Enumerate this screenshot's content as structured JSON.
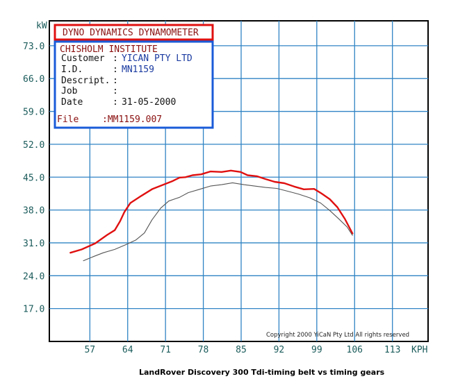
{
  "chart_data": {
    "type": "line",
    "y_unit": "kW",
    "x_unit": "KPH",
    "y_ticks": [
      "73.0",
      "66.0",
      "59.0",
      "52.0",
      "45.0",
      "38.0",
      "31.0",
      "24.0",
      "17.0"
    ],
    "x_ticks": [
      "57",
      "64",
      "71",
      "78",
      "85",
      "92",
      "99",
      "106",
      "113"
    ],
    "xlim": [
      49.5,
      119.6
    ],
    "ylim": [
      10.0,
      78.3
    ],
    "grid": true,
    "header": {
      "title": "DYNO DYNAMICS DYNAMOMETER",
      "institute": "CHISHOLM INSTITUTE",
      "rows": [
        {
          "label": "Customer",
          "sep": ":",
          "value": "YICAN PTY LTD"
        },
        {
          "label": "I.D.",
          "sep": ":",
          "value": "MN1159"
        },
        {
          "label": "Descript.",
          "sep": ":",
          "value": ""
        },
        {
          "label": "Job",
          "sep": ":",
          "value": ""
        },
        {
          "label": "Date",
          "sep": ":",
          "value": "31-05-2000"
        }
      ],
      "file_label": "File",
      "file_value": ":MM1159.007"
    },
    "copyright": "Copyright 2000 YiCaN Pty Ltd All rights reserved",
    "caption": "LandRover Discovery 300 Tdi-timing belt vs timing gears",
    "series": [
      {
        "color": "#e01010",
        "x": [
          53.4,
          55.5,
          58.0,
          60.2,
          61.6,
          62.6,
          63.4,
          64.5,
          66.5,
          68.6,
          70.4,
          72.2,
          73.6,
          74.7,
          76.0,
          77.6,
          79.3,
          81.4,
          83.1,
          84.9,
          86.2,
          87.9,
          89.5,
          91.2,
          93.0,
          94.8,
          96.6,
          98.5,
          99.9,
          101.4,
          102.8,
          104.2,
          105.6
        ],
        "y": [
          28.9,
          29.6,
          30.9,
          32.7,
          33.7,
          35.6,
          37.6,
          39.5,
          41.0,
          42.5,
          43.3,
          44.1,
          44.9,
          45.0,
          45.4,
          45.6,
          46.2,
          46.1,
          46.4,
          46.1,
          45.4,
          45.2,
          44.6,
          44.0,
          43.7,
          43.0,
          42.4,
          42.5,
          41.5,
          40.3,
          38.6,
          36.1,
          33.0
        ]
      },
      {
        "color": "#555555",
        "x": [
          55.8,
          57.5,
          59.5,
          61.6,
          63.6,
          65.5,
          67.1,
          68.5,
          70.1,
          71.6,
          73.6,
          75.2,
          77.3,
          79.3,
          81.4,
          83.4,
          85.5,
          87.5,
          89.5,
          91.6,
          93.6,
          95.6,
          97.7,
          99.7,
          101.4,
          103.0,
          104.6,
          105.6
        ],
        "y": [
          27.2,
          28.0,
          28.9,
          29.6,
          30.6,
          31.6,
          33.1,
          35.9,
          38.4,
          39.9,
          40.7,
          41.7,
          42.4,
          43.1,
          43.4,
          43.8,
          43.4,
          43.1,
          42.8,
          42.6,
          42.0,
          41.4,
          40.6,
          39.5,
          37.9,
          36.2,
          34.4,
          32.6
        ]
      }
    ]
  }
}
